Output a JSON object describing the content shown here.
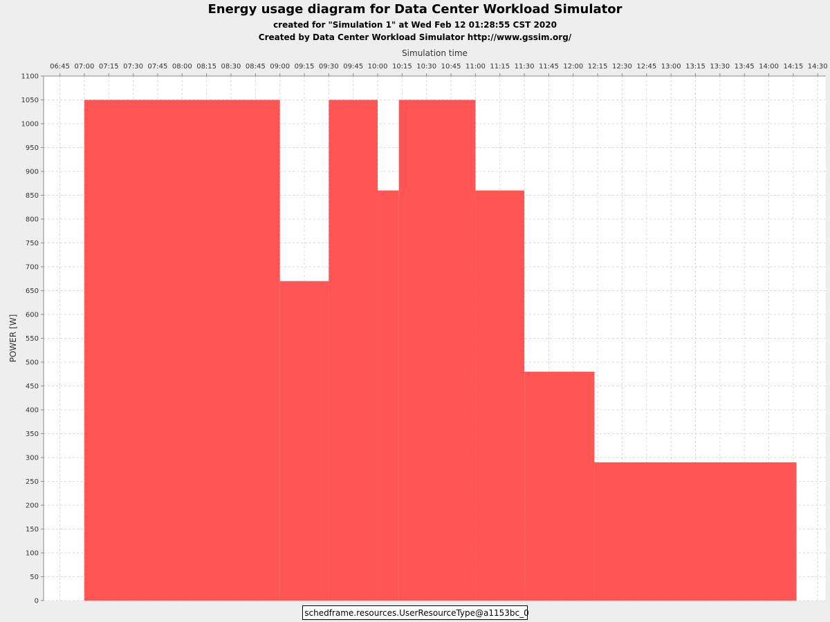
{
  "header": {
    "title": "Energy usage diagram for Data Center Workload Simulator",
    "subtitle1": "created for \"Simulation 1\" at Wed Feb 12 01:28:55 CST 2020",
    "subtitle2": "Created by Data Center Workload Simulator http://www.gssim.org/"
  },
  "chart_data": {
    "type": "area",
    "xlabel": "Simulation time",
    "ylabel": "POWER [W]",
    "xlim": [
      "06:35",
      "14:35"
    ],
    "ylim": [
      0,
      1100
    ],
    "x_ticks": [
      "06:45",
      "07:00",
      "07:15",
      "07:30",
      "07:45",
      "08:00",
      "08:15",
      "08:30",
      "08:45",
      "09:00",
      "09:15",
      "09:30",
      "09:45",
      "10:00",
      "10:15",
      "10:30",
      "10:45",
      "11:00",
      "11:15",
      "11:30",
      "11:45",
      "12:00",
      "12:15",
      "12:30",
      "12:45",
      "13:00",
      "13:15",
      "13:30",
      "13:45",
      "14:00",
      "14:15",
      "14:30"
    ],
    "y_ticks": [
      0,
      50,
      100,
      150,
      200,
      250,
      300,
      350,
      400,
      450,
      500,
      550,
      600,
      650,
      700,
      750,
      800,
      850,
      900,
      950,
      1000,
      1050,
      1100
    ],
    "grid": true,
    "legend_position": "bottom",
    "series": [
      {
        "name": "schedframe.resources.UserResourceType@a1153bc_0",
        "color": "#ff5555",
        "steps": [
          {
            "start": "07:00",
            "end": "09:00",
            "value": 1050
          },
          {
            "start": "09:00",
            "end": "09:30",
            "value": 670
          },
          {
            "start": "09:30",
            "end": "10:00",
            "value": 1050
          },
          {
            "start": "10:00",
            "end": "10:13",
            "value": 860
          },
          {
            "start": "10:13",
            "end": "11:00",
            "value": 1050
          },
          {
            "start": "11:00",
            "end": "11:30",
            "value": 860
          },
          {
            "start": "11:30",
            "end": "12:13",
            "value": 480
          },
          {
            "start": "12:13",
            "end": "14:17",
            "value": 290
          }
        ]
      }
    ]
  }
}
